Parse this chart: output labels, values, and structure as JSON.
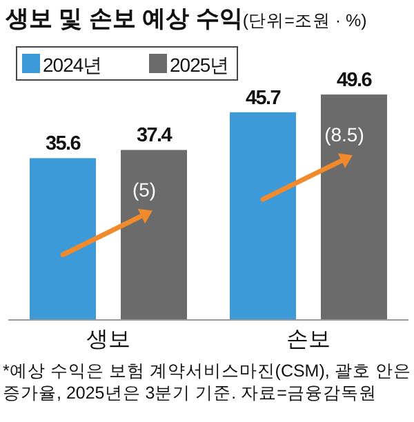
{
  "chart_data": {
    "type": "bar",
    "title": "생보 및 손보 예상 수익",
    "subtitle": "(단위=조원 · %)",
    "categories": [
      "생보",
      "손보"
    ],
    "series": [
      {
        "name": "2024년",
        "color": "#3d9ad8",
        "values": [
          35.6,
          45.7
        ]
      },
      {
        "name": "2025년",
        "color": "#6b6b6b",
        "values": [
          37.4,
          49.6
        ]
      }
    ],
    "data_labels": true,
    "legend": "top left",
    "annotations": [
      "(5)",
      "(8.5)",
      "*예상 수익은 보험 계약서비스마진(CSM), 괄호 안은 증가율, 2025년은 3분기 기준. 자료=금융감독원"
    ]
  }
}
